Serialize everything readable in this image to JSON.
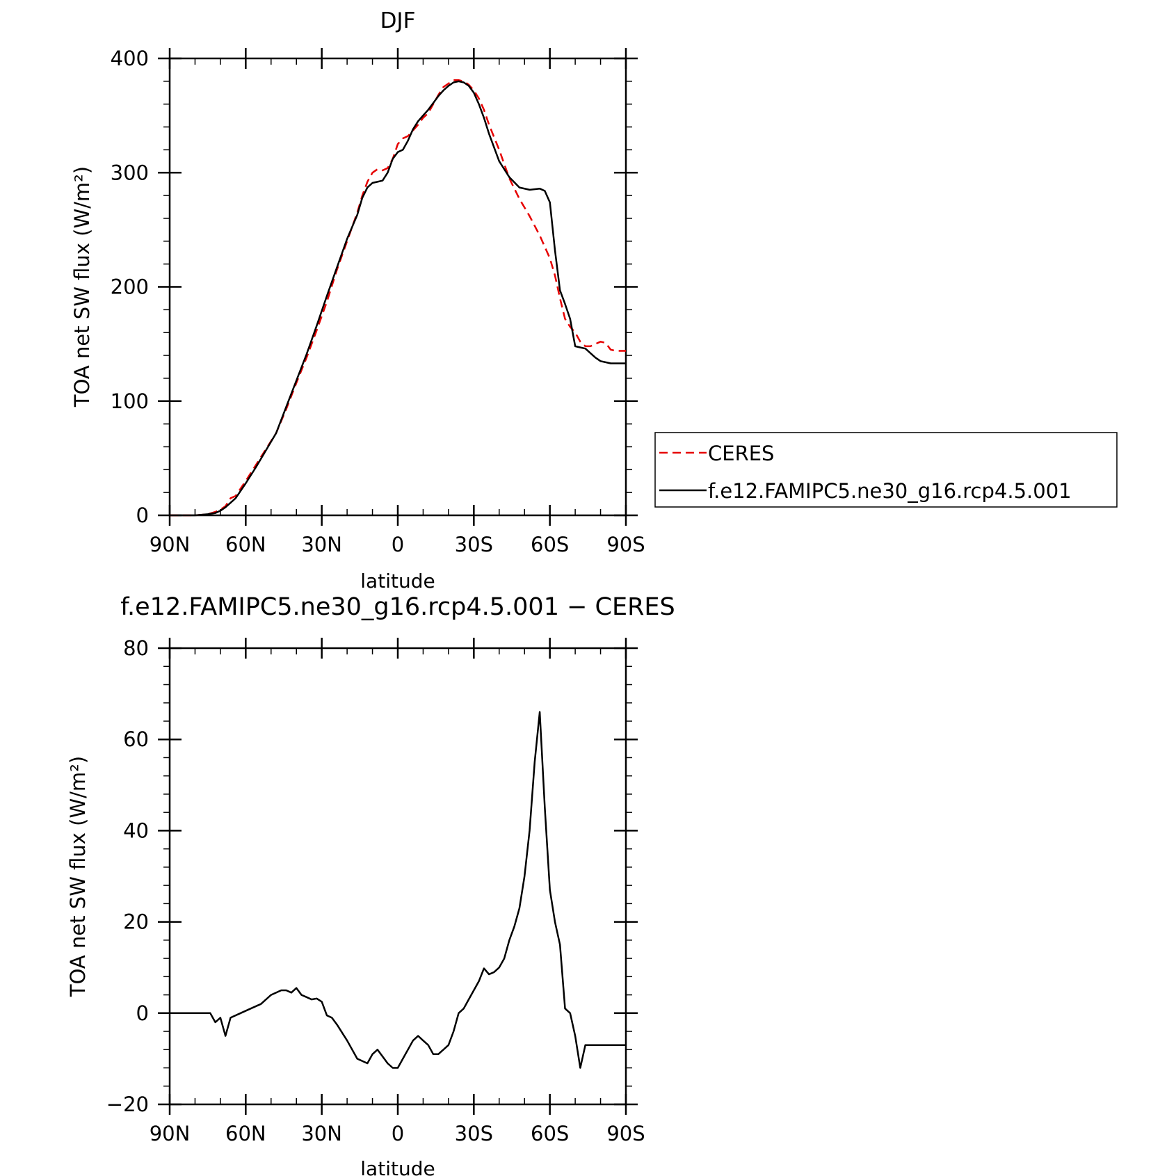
{
  "chart_data": [
    {
      "type": "line",
      "title": "DJF",
      "xlabel": "latitude",
      "ylabel": "TOA net SW flux (W/m²)",
      "xlim": [
        90,
        -90
      ],
      "ylim": [
        0,
        400
      ],
      "x_ticks": [
        90,
        60,
        30,
        0,
        -30,
        -60,
        -90
      ],
      "x_tick_labels": [
        "90N",
        "60N",
        "30N",
        "0",
        "30S",
        "60S",
        "90S"
      ],
      "y_ticks": [
        0,
        100,
        200,
        300,
        400
      ],
      "y_tick_labels": [
        "0",
        "100",
        "200",
        "300",
        "400"
      ],
      "legend": {
        "placement": "right",
        "entries": [
          "CERES",
          "f.e12.FAMIPC5.ne30_g16.rcp4.5.001"
        ]
      },
      "series": [
        {
          "name": "CERES",
          "color": "#e60000",
          "style": "dashed",
          "x": [
            90,
            80,
            75,
            72,
            70,
            68,
            66,
            64,
            60,
            56,
            52,
            48,
            44,
            40,
            36,
            32,
            28,
            24,
            20,
            16,
            14,
            12,
            10,
            8,
            6,
            4,
            2,
            0,
            -2,
            -4,
            -6,
            -8,
            -10,
            -12,
            -14,
            -16,
            -18,
            -20,
            -22,
            -24,
            -26,
            -28,
            -30,
            -32,
            -34,
            -36,
            -40,
            -44,
            -48,
            -52,
            -56,
            -60,
            -62,
            -64,
            -66,
            -68,
            -70,
            -72,
            -74,
            -76,
            -78,
            -80,
            -82,
            -84,
            -86,
            -88,
            -90
          ],
          "y": [
            0,
            0,
            1,
            3,
            5,
            8,
            15,
            17,
            30,
            44,
            58,
            72,
            93,
            116,
            138,
            162,
            187,
            215,
            240,
            265,
            280,
            292,
            300,
            303,
            302,
            304,
            312,
            325,
            330,
            332,
            337,
            342,
            348,
            352,
            360,
            368,
            375,
            378,
            381,
            381,
            380,
            377,
            372,
            365,
            355,
            342,
            320,
            295,
            277,
            262,
            245,
            225,
            210,
            190,
            172,
            165,
            160,
            152,
            148,
            148,
            150,
            152,
            151,
            145,
            144,
            144,
            144
          ]
        },
        {
          "name": "f.e12.FAMIPC5.ne30_g16.rcp4.5.001",
          "color": "#000000",
          "style": "solid",
          "x": [
            90,
            80,
            75,
            72,
            70,
            68,
            66,
            64,
            60,
            56,
            52,
            48,
            44,
            40,
            36,
            32,
            28,
            24,
            20,
            16,
            14,
            12,
            10,
            8,
            6,
            4,
            2,
            0,
            -2,
            -4,
            -6,
            -8,
            -10,
            -12,
            -14,
            -16,
            -18,
            -20,
            -22,
            -24,
            -26,
            -28,
            -30,
            -32,
            -34,
            -36,
            -40,
            -44,
            -48,
            -52,
            -56,
            -58,
            -60,
            -62,
            -64,
            -66,
            -68,
            -70,
            -72,
            -74,
            -76,
            -78,
            -80,
            -82,
            -84,
            -86,
            -88,
            -90
          ],
          "y": [
            0,
            0,
            1,
            2,
            4,
            7,
            11,
            15,
            28,
            42,
            57,
            72,
            95,
            118,
            141,
            166,
            192,
            217,
            242,
            263,
            278,
            287,
            291,
            292,
            293,
            300,
            312,
            318,
            320,
            328,
            338,
            345,
            350,
            355,
            361,
            367,
            372,
            376,
            379,
            380,
            379,
            376,
            370,
            360,
            348,
            334,
            310,
            296,
            287,
            285,
            286,
            284,
            274,
            232,
            197,
            185,
            172,
            148,
            147,
            146,
            142,
            138,
            135,
            134,
            133,
            133,
            133,
            133
          ]
        }
      ]
    },
    {
      "type": "line",
      "title": "f.e12.FAMIPC5.ne30_g16.rcp4.5.001 − CERES",
      "xlabel": "latitude",
      "ylabel": "TOA net SW flux (W/m²)",
      "xlim": [
        90,
        -90
      ],
      "ylim": [
        -20,
        80
      ],
      "x_ticks": [
        90,
        60,
        30,
        0,
        -30,
        -60,
        -90
      ],
      "x_tick_labels": [
        "90N",
        "60N",
        "30N",
        "0",
        "30S",
        "60S",
        "90S"
      ],
      "y_ticks": [
        -20,
        0,
        20,
        40,
        60,
        80
      ],
      "y_tick_labels": [
        "−20",
        "0",
        "20",
        "40",
        "60",
        "80"
      ],
      "series": [
        {
          "color": "#000000",
          "style": "solid",
          "x": [
            90,
            80,
            77,
            74,
            72,
            70,
            68,
            66,
            62,
            58,
            54,
            50,
            46,
            44,
            42,
            40,
            38,
            36,
            34,
            32,
            30,
            28,
            26,
            24,
            20,
            16,
            12,
            10,
            8,
            6,
            4,
            2,
            0,
            -2,
            -4,
            -6,
            -8,
            -10,
            -12,
            -14,
            -16,
            -18,
            -20,
            -22,
            -24,
            -26,
            -28,
            -30,
            -32,
            -34,
            -36,
            -38,
            -40,
            -42,
            -44,
            -46,
            -48,
            -50,
            -52,
            -54,
            -56,
            -58,
            -60,
            -62,
            -64,
            -66,
            -68,
            -70,
            -72,
            -74,
            -76,
            -78,
            -80,
            -82,
            -84,
            -86,
            -88,
            -90
          ],
          "y": [
            0,
            0,
            0,
            0,
            -2,
            -1,
            -5,
            -1,
            0,
            1,
            2,
            4,
            5,
            5,
            4.5,
            5.5,
            4,
            3.5,
            3,
            3.2,
            2.5,
            -0.5,
            -1,
            -2.5,
            -6,
            -10,
            -11,
            -9,
            -8,
            -9.5,
            -11,
            -12,
            -12,
            -10,
            -8,
            -6,
            -5,
            -6,
            -7,
            -9,
            -9,
            -8,
            -7,
            -4,
            0,
            1,
            3,
            5,
            7,
            9.8,
            8.5,
            9,
            10,
            12,
            16,
            19,
            23,
            30,
            40,
            55,
            66,
            45,
            27,
            20,
            15,
            1,
            0,
            -5,
            -12,
            -7,
            -7,
            -7,
            -7,
            -7,
            -7,
            -7,
            -7,
            -7
          ]
        }
      ]
    }
  ]
}
